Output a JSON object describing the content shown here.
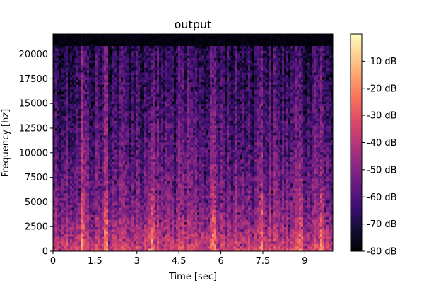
{
  "chart_data": {
    "type": "heatmap",
    "title": "output",
    "xlabel": "Time [sec]",
    "ylabel": "Frequency [hz]",
    "xlim": [
      0,
      10
    ],
    "ylim": [
      0,
      22050
    ],
    "x_ticks": [
      0,
      1.5,
      3,
      4.5,
      6,
      7.5,
      9
    ],
    "x_tick_labels": [
      "0",
      "1.5",
      "3",
      "4.5",
      "6",
      "7.5",
      "9"
    ],
    "y_ticks": [
      0,
      2500,
      5000,
      7500,
      10000,
      12500,
      15000,
      17500,
      20000
    ],
    "y_tick_labels": [
      "0",
      "2500",
      "5000",
      "7500",
      "10000",
      "12500",
      "15000",
      "17500",
      "20000"
    ],
    "colorbar": {
      "colormap": "magma",
      "range_db": [
        -80,
        0
      ],
      "ticks": [
        -80,
        -70,
        -60,
        -50,
        -40,
        -30,
        -20,
        -10
      ],
      "tick_labels": [
        "-80 dB",
        "-70 dB",
        "-60 dB",
        "-50 dB",
        "-40 dB",
        "-30 dB",
        "-20 dB",
        "-10 dB"
      ]
    },
    "transients_sec": [
      1.05,
      1.9,
      3.5,
      5.75,
      7.45,
      8.85,
      9.6
    ]
  }
}
